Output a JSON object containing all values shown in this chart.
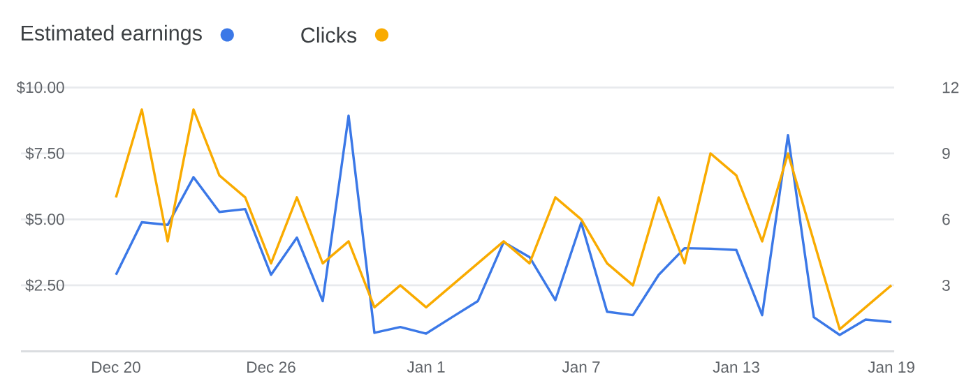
{
  "chart_data": {
    "type": "line",
    "categories": [
      "Dec 20",
      null,
      null,
      null,
      null,
      null,
      "Dec 26",
      null,
      null,
      null,
      null,
      null,
      "Jan 1",
      null,
      null,
      null,
      null,
      null,
      "Jan 7",
      null,
      null,
      null,
      null,
      null,
      "Jan 13",
      null,
      null,
      null,
      null,
      null,
      "Jan 19"
    ],
    "series": [
      {
        "name": "Estimated earnings",
        "color": "#3b78e7",
        "values": [
          2.9,
          4.89,
          4.79,
          6.6,
          5.28,
          5.39,
          2.9,
          4.31,
          1.9,
          8.93,
          0.7,
          0.92,
          0.67,
          1.29,
          1.9,
          4.14,
          3.57,
          1.94,
          4.88,
          1.5,
          1.37,
          2.9,
          3.91,
          3.89,
          3.84,
          1.37,
          8.19,
          1.29,
          0.62,
          1.2,
          1.11
        ]
      },
      {
        "name": "Clicks",
        "color": "#f9ab00",
        "axis": "y2",
        "values": [
          7,
          11,
          5,
          11,
          8,
          7,
          4,
          7,
          4,
          5,
          2,
          3,
          2,
          3,
          4,
          5,
          4,
          7,
          6,
          4,
          3,
          7,
          4,
          9,
          8,
          5,
          9,
          5,
          1,
          2,
          3
        ]
      }
    ],
    "ylim": [
      0,
      10
    ],
    "yticks": [
      {
        "value": 2.5,
        "label": "$2.50"
      },
      {
        "value": 5,
        "label": "$5.00"
      },
      {
        "value": 7.5,
        "label": "$7.50"
      },
      {
        "value": 10,
        "label": "$10.00"
      }
    ],
    "y2lim": [
      0,
      12
    ],
    "y2ticks": [
      3,
      6,
      9,
      12
    ],
    "grid": "y",
    "legend": "top left"
  }
}
